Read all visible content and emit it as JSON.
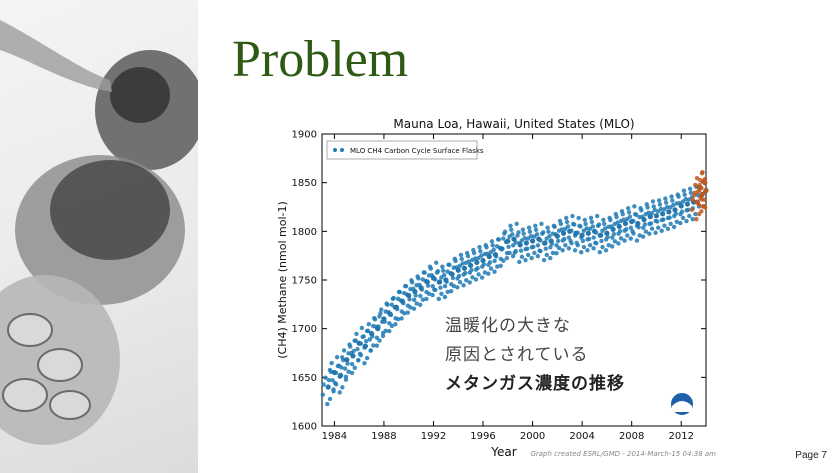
{
  "slide": {
    "title": "Problem",
    "page_label": "Page 7",
    "overlay": {
      "line1": "温暖化の大きな",
      "line2": "原因とされている",
      "line3": "メタンガス濃度の推移"
    }
  },
  "colors": {
    "title": "#2e5a14",
    "series_main": "#1f7ab4",
    "series_recent": "#c2571c"
  },
  "icons": [
    "noaa-logo-icon"
  ],
  "chart_data": {
    "type": "scatter",
    "title": "Mauna Loa, Hawaii, United States (MLO)",
    "xlabel": "Year",
    "ylabel": "(CH4) Methane (nmol mol-1)",
    "xlim": [
      1983,
      2014
    ],
    "ylim": [
      1600,
      1900
    ],
    "xticks": [
      1984,
      1988,
      1992,
      1996,
      2000,
      2004,
      2008,
      2012
    ],
    "yticks": [
      1600,
      1650,
      1700,
      1750,
      1800,
      1850,
      1900
    ],
    "grid": false,
    "legend_position": "top-left",
    "credit": "Graph created ESRL/GMD - 2014-March-15 04:38 am",
    "series": [
      {
        "name": "MLO CH4 Carbon Cycle Surface Flasks",
        "color": "#1f7ab4",
        "x": [
          1983.5,
          1984.0,
          1984.5,
          1985.0,
          1985.5,
          1986.0,
          1986.5,
          1987.0,
          1987.5,
          1988.0,
          1988.5,
          1989.0,
          1989.5,
          1990.0,
          1990.5,
          1991.0,
          1991.5,
          1992.0,
          1992.5,
          1993.0,
          1993.5,
          1994.0,
          1994.5,
          1995.0,
          1995.5,
          1996.0,
          1996.5,
          1997.0,
          1997.5,
          1998.0,
          1998.5,
          1999.0,
          1999.5,
          2000.0,
          2000.5,
          2001.0,
          2001.5,
          2002.0,
          2002.5,
          2003.0,
          2003.5,
          2004.0,
          2004.5,
          2005.0,
          2005.5,
          2006.0,
          2006.5,
          2007.0,
          2007.5,
          2008.0,
          2008.5,
          2009.0,
          2009.5,
          2010.0,
          2010.5,
          2011.0,
          2011.5,
          2012.0,
          2012.5,
          2013.0
        ],
        "y": [
          1640,
          1655,
          1652,
          1668,
          1672,
          1685,
          1682,
          1695,
          1700,
          1710,
          1715,
          1722,
          1728,
          1734,
          1738,
          1742,
          1748,
          1752,
          1748,
          1750,
          1756,
          1760,
          1762,
          1765,
          1768,
          1770,
          1774,
          1776,
          1782,
          1790,
          1792,
          1786,
          1788,
          1790,
          1792,
          1788,
          1790,
          1795,
          1798,
          1800,
          1798,
          1796,
          1798,
          1800,
          1796,
          1798,
          1802,
          1805,
          1808,
          1810,
          1808,
          1812,
          1815,
          1816,
          1818,
          1820,
          1822,
          1826,
          1828,
          1830
        ]
      },
      {
        "name": "",
        "color": "#c2571c",
        "x": [
          2013.3,
          2013.5,
          2013.7,
          2013.9,
          2014.0
        ],
        "y": [
          1830,
          1845,
          1838,
          1850,
          1842
        ]
      }
    ]
  }
}
